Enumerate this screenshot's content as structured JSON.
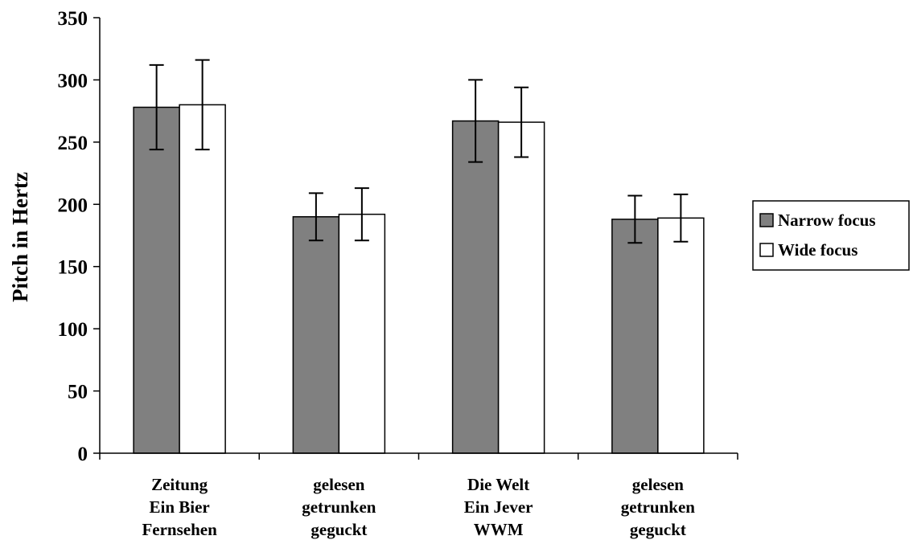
{
  "chart_data": {
    "type": "bar",
    "title": "",
    "xlabel": "",
    "ylabel": "Pitch in Hertz",
    "ylim": [
      0,
      350
    ],
    "yticks": [
      0,
      50,
      100,
      150,
      200,
      250,
      300,
      350
    ],
    "ytick_labels": [
      "0",
      "50",
      "100",
      "150",
      "200",
      "250",
      "300",
      "350"
    ],
    "categories": [
      [
        "Zeitung",
        "Ein Bier",
        "Fernsehen"
      ],
      [
        "gelesen",
        "getrunken",
        "geguckt"
      ],
      [
        "Die Welt",
        "Ein Jever",
        "WWM"
      ],
      [
        "gelesen",
        "getrunken",
        "geguckt"
      ]
    ],
    "series": [
      {
        "name": "Narrow focus",
        "color": "#808080",
        "values": [
          278,
          190,
          267,
          188
        ],
        "error_low": [
          244,
          171,
          234,
          169
        ],
        "error_high": [
          312,
          209,
          300,
          207
        ]
      },
      {
        "name": "Wide focus",
        "color": "#ffffff",
        "values": [
          280,
          192,
          266,
          189
        ],
        "error_low": [
          244,
          171,
          238,
          170
        ],
        "error_high": [
          316,
          213,
          294,
          208
        ]
      }
    ],
    "legend_position": "right",
    "grid": false
  }
}
